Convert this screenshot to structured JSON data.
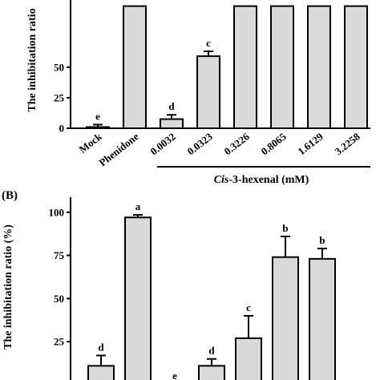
{
  "chart_data": [
    {
      "type": "bar",
      "panel": "A",
      "categories": [
        "Mock",
        "Phenidone",
        "0.0032",
        "0.0323",
        "0.3226",
        "0.8065",
        "1.6129",
        "3.2258"
      ],
      "group_label_prefix": "Cis",
      "group_label_suffix": "-3-hexenal (mM)",
      "ylabel": "The inhibitation ratio",
      "yticks": [
        0,
        25,
        50
      ],
      "ylim": [
        0,
        105
      ],
      "series": [
        {
          "values": [
            1,
            100,
            7.5,
            59,
            100,
            100,
            100,
            100
          ],
          "errors": [
            2,
            0,
            3.5,
            4,
            0,
            0,
            0,
            0
          ],
          "significance": [
            "e",
            "",
            "d",
            "c",
            "",
            "",
            "",
            ""
          ]
        }
      ],
      "grid": false
    },
    {
      "type": "bar",
      "panel": "B",
      "panel_label": "(B)",
      "ylabel": "The inhibitation ratio (%)",
      "yticks": [
        25,
        50,
        75,
        100
      ],
      "ylim": [
        0,
        105
      ],
      "series": [
        {
          "values": [
            11,
            97,
            0.5,
            11,
            27,
            74,
            73
          ],
          "errors": [
            6,
            1.5,
            0,
            4,
            13,
            12,
            6
          ],
          "significance": [
            "d",
            "a",
            "e",
            "d",
            "c",
            "b",
            "b"
          ]
        }
      ],
      "grid": false
    }
  ]
}
